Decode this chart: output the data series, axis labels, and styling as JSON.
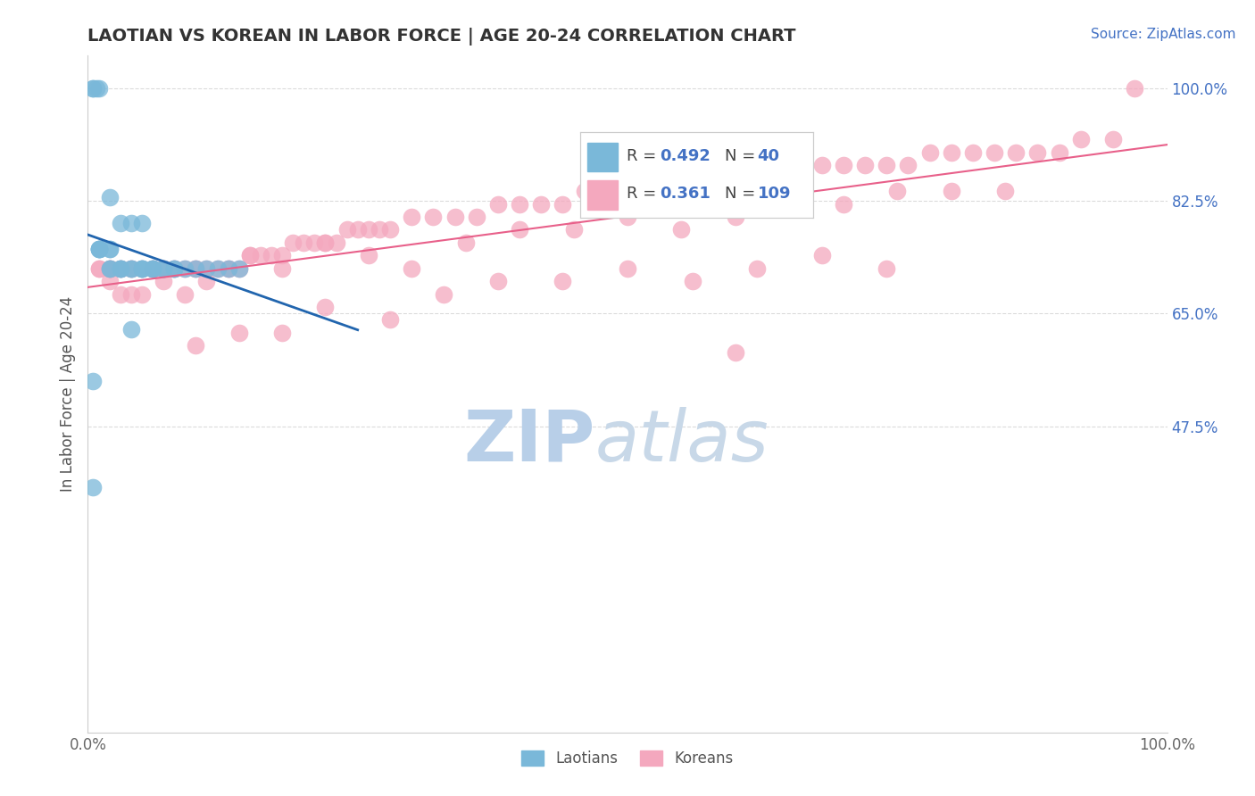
{
  "title": "LAOTIAN VS KOREAN IN LABOR FORCE | AGE 20-24 CORRELATION CHART",
  "source_text": "Source: ZipAtlas.com",
  "ylabel": "In Labor Force | Age 20-24",
  "y_tick_labels_right": [
    "47.5%",
    "65.0%",
    "82.5%",
    "100.0%"
  ],
  "legend_labels": [
    "Laotians",
    "Koreans"
  ],
  "legend_R": [
    0.492,
    0.361
  ],
  "legend_N": [
    40,
    109
  ],
  "laotian_color": "#7ab8d9",
  "korean_color": "#f4a8be",
  "trendline_laotian_color": "#2165ae",
  "trendline_korean_color": "#e8608a",
  "background_color": "#ffffff",
  "watermark_zip": "ZIP",
  "watermark_atlas": "atlas",
  "watermark_color_zip": "#b8cfe8",
  "watermark_color_atlas": "#c8d8e8",
  "grid_color": "#cccccc",
  "label_color": "#4472c4",
  "title_color": "#333333",
  "xlim": [
    0.0,
    1.0
  ],
  "ylim": [
    0.0,
    1.05
  ],
  "yticks_right": [
    0.475,
    0.65,
    0.825,
    1.0
  ],
  "xticks": [
    0.0,
    1.0
  ],
  "laotian_x": [
    0.005,
    0.005,
    0.008,
    0.01,
    0.01,
    0.01,
    0.01,
    0.01,
    0.02,
    0.02,
    0.02,
    0.02,
    0.03,
    0.03,
    0.03,
    0.04,
    0.04,
    0.05,
    0.05,
    0.05,
    0.06,
    0.06,
    0.06,
    0.07,
    0.07,
    0.08,
    0.08,
    0.09,
    0.1,
    0.11,
    0.12,
    0.13,
    0.14,
    0.02,
    0.03,
    0.04,
    0.05,
    0.04,
    0.005,
    0.005
  ],
  "laotian_y": [
    1.0,
    1.0,
    1.0,
    1.0,
    0.75,
    0.75,
    0.75,
    0.75,
    0.75,
    0.75,
    0.72,
    0.72,
    0.72,
    0.72,
    0.72,
    0.72,
    0.72,
    0.72,
    0.72,
    0.72,
    0.72,
    0.72,
    0.72,
    0.72,
    0.72,
    0.72,
    0.72,
    0.72,
    0.72,
    0.72,
    0.72,
    0.72,
    0.72,
    0.83,
    0.79,
    0.79,
    0.79,
    0.625,
    0.545,
    0.38
  ],
  "korean_x": [
    0.01,
    0.01,
    0.02,
    0.02,
    0.02,
    0.03,
    0.03,
    0.04,
    0.04,
    0.05,
    0.06,
    0.06,
    0.07,
    0.07,
    0.08,
    0.08,
    0.09,
    0.1,
    0.1,
    0.11,
    0.12,
    0.13,
    0.14,
    0.15,
    0.16,
    0.17,
    0.18,
    0.19,
    0.2,
    0.21,
    0.22,
    0.23,
    0.24,
    0.25,
    0.26,
    0.27,
    0.28,
    0.3,
    0.32,
    0.34,
    0.36,
    0.38,
    0.4,
    0.42,
    0.44,
    0.46,
    0.48,
    0.5,
    0.52,
    0.54,
    0.56,
    0.58,
    0.6,
    0.62,
    0.64,
    0.66,
    0.68,
    0.7,
    0.72,
    0.74,
    0.76,
    0.78,
    0.8,
    0.82,
    0.84,
    0.86,
    0.88,
    0.9,
    0.92,
    0.95,
    0.02,
    0.03,
    0.04,
    0.05,
    0.07,
    0.09,
    0.11,
    0.13,
    0.15,
    0.18,
    0.22,
    0.26,
    0.3,
    0.35,
    0.4,
    0.45,
    0.5,
    0.55,
    0.6,
    0.65,
    0.7,
    0.75,
    0.8,
    0.85,
    0.1,
    0.14,
    0.18,
    0.22,
    0.28,
    0.33,
    0.38,
    0.44,
    0.5,
    0.56,
    0.62,
    0.68,
    0.74,
    0.97,
    0.6
  ],
  "korean_y": [
    0.72,
    0.72,
    0.72,
    0.72,
    0.72,
    0.72,
    0.72,
    0.72,
    0.72,
    0.72,
    0.72,
    0.72,
    0.72,
    0.72,
    0.72,
    0.72,
    0.72,
    0.72,
    0.72,
    0.72,
    0.72,
    0.72,
    0.72,
    0.74,
    0.74,
    0.74,
    0.74,
    0.76,
    0.76,
    0.76,
    0.76,
    0.76,
    0.78,
    0.78,
    0.78,
    0.78,
    0.78,
    0.8,
    0.8,
    0.8,
    0.8,
    0.82,
    0.82,
    0.82,
    0.82,
    0.84,
    0.84,
    0.84,
    0.84,
    0.84,
    0.86,
    0.86,
    0.86,
    0.86,
    0.88,
    0.88,
    0.88,
    0.88,
    0.88,
    0.88,
    0.88,
    0.9,
    0.9,
    0.9,
    0.9,
    0.9,
    0.9,
    0.9,
    0.92,
    0.92,
    0.7,
    0.68,
    0.68,
    0.68,
    0.7,
    0.68,
    0.7,
    0.72,
    0.74,
    0.72,
    0.76,
    0.74,
    0.72,
    0.76,
    0.78,
    0.78,
    0.8,
    0.78,
    0.8,
    0.82,
    0.82,
    0.84,
    0.84,
    0.84,
    0.6,
    0.62,
    0.62,
    0.66,
    0.64,
    0.68,
    0.7,
    0.7,
    0.72,
    0.7,
    0.72,
    0.74,
    0.72,
    1.0,
    0.59
  ]
}
